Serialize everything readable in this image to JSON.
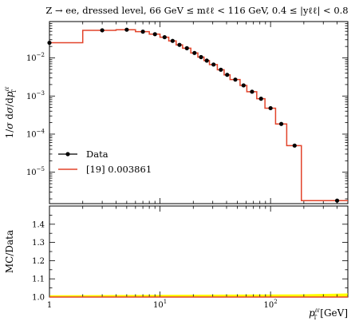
{
  "title": "Z → ee, dressed level, 66 GeV ≤ mℓℓ < 116 GeV, 0.4 ≤ |yℓℓ| < 0.8",
  "colors": {
    "data": "#000000",
    "mc": "#e2432a",
    "band": "#ffff00"
  },
  "chart_data": [
    {
      "panel": "main",
      "type": "line",
      "xscale": "log",
      "yscale": "log",
      "xlim": [
        1,
        500
      ],
      "ylim": [
        1.5e-06,
        0.09
      ],
      "ylabel": "1/σ dσ/dpℓℓT",
      "legend": {
        "placement": "bottom-left",
        "entries": [
          "Data",
          "[19] 0.003861"
        ]
      },
      "series": [
        {
          "name": "Data",
          "style": "points",
          "x": [
            1,
            3,
            5,
            7,
            9,
            11,
            13,
            15,
            17.5,
            20.5,
            23.5,
            26.5,
            30.5,
            35.5,
            40.5,
            48,
            57,
            68,
            82,
            100,
            125,
            165,
            400
          ],
          "y": [
            0.025,
            0.053,
            0.055,
            0.049,
            0.042,
            0.035,
            0.028,
            0.022,
            0.018,
            0.0135,
            0.0105,
            0.0085,
            0.0067,
            0.0049,
            0.0036,
            0.0027,
            0.0019,
            0.0013,
            0.00085,
            0.00048,
            0.000185,
            5e-05,
            1.8e-06
          ]
        },
        {
          "name": "[19] 0.003861",
          "style": "histogram",
          "edges": [
            1,
            2,
            4,
            6,
            8,
            10,
            12,
            14,
            16,
            19,
            22,
            25,
            28,
            33,
            38,
            43,
            53,
            61,
            75,
            89,
            111,
            140,
            190,
            500
          ],
          "values": [
            0.025,
            0.053,
            0.055,
            0.049,
            0.042,
            0.035,
            0.028,
            0.022,
            0.018,
            0.0135,
            0.0105,
            0.0085,
            0.0067,
            0.0049,
            0.0036,
            0.0027,
            0.0019,
            0.0013,
            0.00085,
            0.00048,
            0.000185,
            5e-05,
            1.8e-06
          ]
        }
      ]
    },
    {
      "panel": "ratio",
      "type": "line",
      "xscale": "log",
      "xlim": [
        1,
        500
      ],
      "ylim": [
        1.0,
        1.5
      ],
      "ylabel": "MC/Data",
      "xlabel": "pℓℓT [GeV]",
      "series": [
        {
          "name": "MC/Data",
          "x": [
            1,
            190,
            500
          ],
          "values": [
            1.0,
            1.0,
            1.0
          ],
          "band": [
            0.01,
            0.015,
            0.02
          ]
        }
      ]
    }
  ],
  "axis": {
    "main_yticks": [
      "10−5",
      "10−4",
      "10−3",
      "10−2"
    ],
    "ratio_yticks": [
      "1.0",
      "1.1",
      "1.2",
      "1.3",
      "1.4"
    ],
    "xticks": [
      "1",
      "10¹",
      "10²"
    ]
  }
}
